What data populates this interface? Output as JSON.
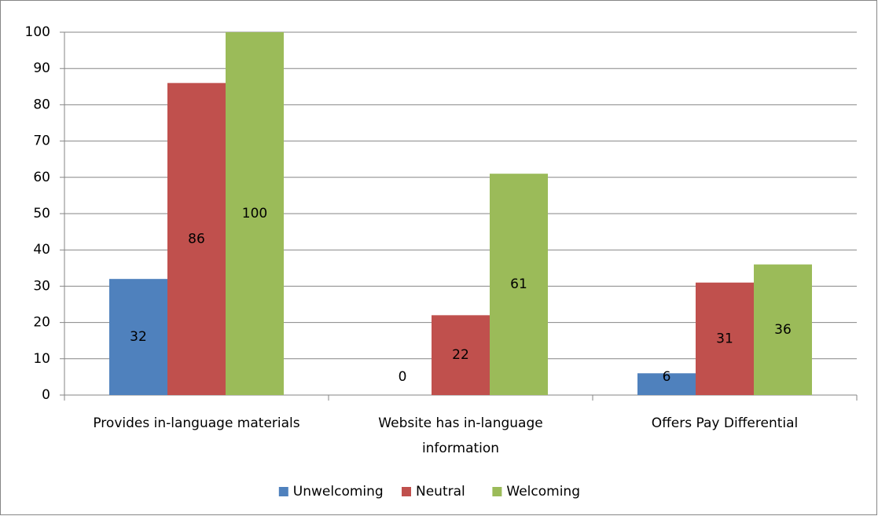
{
  "chart_data": {
    "type": "bar",
    "categories": [
      "Provides in-language materials",
      "Website has in-language information",
      "Offers Pay Differential"
    ],
    "series": [
      {
        "name": "Unwelcoming",
        "color": "#4f81bd",
        "values": [
          32,
          0,
          6
        ]
      },
      {
        "name": "Neutral",
        "color": "#c0504d",
        "values": [
          86,
          22,
          31
        ]
      },
      {
        "name": "Welcoming",
        "color": "#9bbb59",
        "values": [
          100,
          61,
          36
        ]
      }
    ],
    "ylim": [
      0,
      100
    ],
    "yticks": [
      0,
      10,
      20,
      30,
      40,
      50,
      60,
      70,
      80,
      90,
      100
    ],
    "grid": true,
    "legend": "bottom"
  }
}
